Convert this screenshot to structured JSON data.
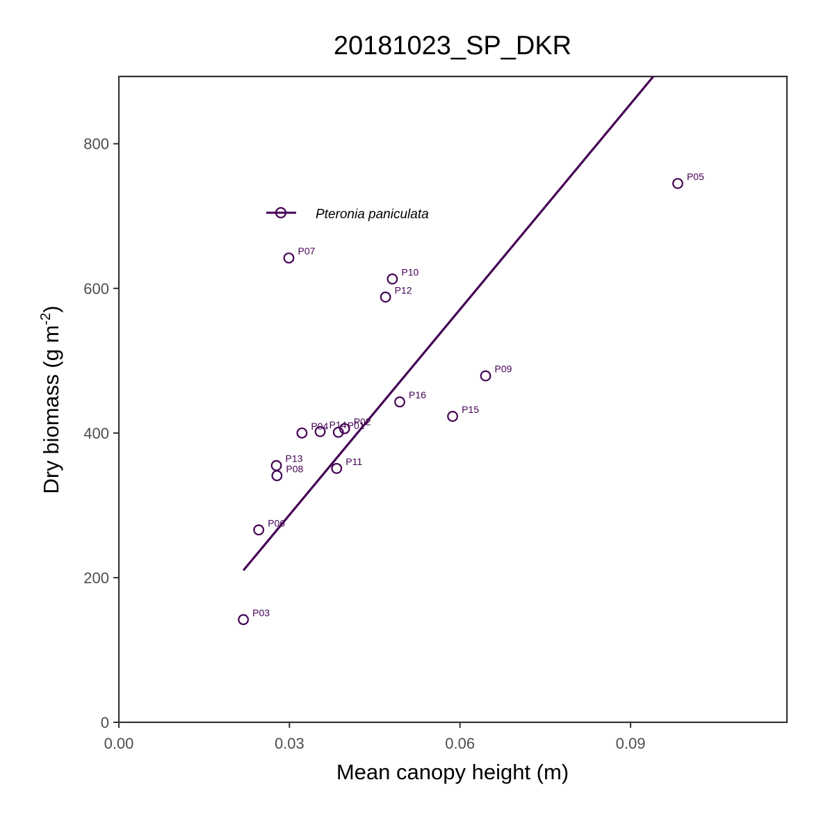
{
  "colors": {
    "series": "#440154",
    "axis": "#333333",
    "tick_text": "#4d4d4d"
  },
  "chart_data": {
    "type": "scatter",
    "title": "20181023_SP_DKR",
    "xlabel": "Mean canopy height (m)",
    "ylabel": "Dry biomass (g m",
    "ylabel_sup": "-2",
    "ylabel_close": ")",
    "xlim": [
      0,
      0.1175
    ],
    "ylim": [
      0,
      893
    ],
    "x_ticks": [
      {
        "value": 0.0,
        "label": "0.00"
      },
      {
        "value": 0.03,
        "label": "0.03"
      },
      {
        "value": 0.06,
        "label": "0.06"
      },
      {
        "value": 0.09,
        "label": "0.09"
      }
    ],
    "y_ticks": [
      {
        "value": 0,
        "label": "0"
      },
      {
        "value": 200,
        "label": "200"
      },
      {
        "value": 400,
        "label": "400"
      },
      {
        "value": 600,
        "label": "600"
      },
      {
        "value": 800,
        "label": "800"
      }
    ],
    "grid": false,
    "legend_position": "top-left",
    "series": [
      {
        "name": "Pteronia paniculata",
        "points": [
          {
            "label": "P03",
            "x": 0.0219,
            "y": 142
          },
          {
            "label": "P06",
            "x": 0.0246,
            "y": 266
          },
          {
            "label": "P13",
            "x": 0.0277,
            "y": 355
          },
          {
            "label": "P08",
            "x": 0.0278,
            "y": 341
          },
          {
            "label": "P07",
            "x": 0.0299,
            "y": 642
          },
          {
            "label": "P04",
            "x": 0.0322,
            "y": 400
          },
          {
            "label": "P14",
            "x": 0.0354,
            "y": 402
          },
          {
            "label": "P01",
            "x": 0.0386,
            "y": 401
          },
          {
            "label": "P11",
            "x": 0.0383,
            "y": 351
          },
          {
            "label": "P02",
            "x": 0.0397,
            "y": 406
          },
          {
            "label": "P12",
            "x": 0.0469,
            "y": 588
          },
          {
            "label": "P10",
            "x": 0.0481,
            "y": 613
          },
          {
            "label": "P16",
            "x": 0.0494,
            "y": 443
          },
          {
            "label": "P15",
            "x": 0.0587,
            "y": 423
          },
          {
            "label": "P09",
            "x": 0.0645,
            "y": 479
          },
          {
            "label": "P05",
            "x": 0.0983,
            "y": 745
          }
        ],
        "fit": {
          "x": [
            0.0219,
            0.094
          ],
          "y": [
            210,
            893
          ]
        }
      }
    ]
  }
}
